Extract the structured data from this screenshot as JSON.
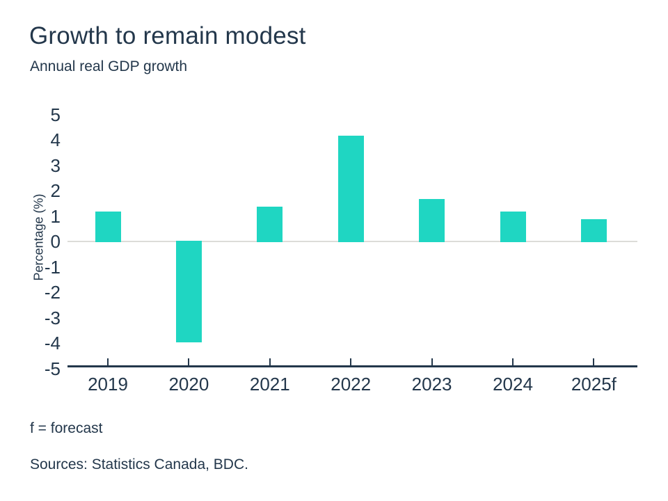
{
  "header": {
    "title": "Growth to remain modest",
    "subtitle": "Annual real GDP growth"
  },
  "chart_data": {
    "type": "bar",
    "categories": [
      "2019",
      "2020",
      "2021",
      "2022",
      "2023",
      "2024",
      "2025f"
    ],
    "values": [
      1.2,
      -4.0,
      1.4,
      4.2,
      1.7,
      1.2,
      0.9
    ],
    "title": "Growth to remain modest",
    "subtitle": "Annual real GDP growth",
    "xlabel": "",
    "ylabel": "Percentage (%)",
    "ylim": [
      -5,
      5
    ],
    "yticks": [
      5,
      4,
      3,
      2,
      1,
      0,
      -1,
      -2,
      -3,
      -4,
      -5
    ],
    "grid": false,
    "legend": false,
    "zero_baseline": true
  },
  "colors": {
    "bar": "#1fd6c2",
    "text": "#23374b",
    "axis_line": "#23374b",
    "zero_line": "#dcdcd8",
    "background": "#ffffff"
  },
  "footer": {
    "note": "f = forecast",
    "sources": "Sources: Statistics Canada, BDC."
  }
}
